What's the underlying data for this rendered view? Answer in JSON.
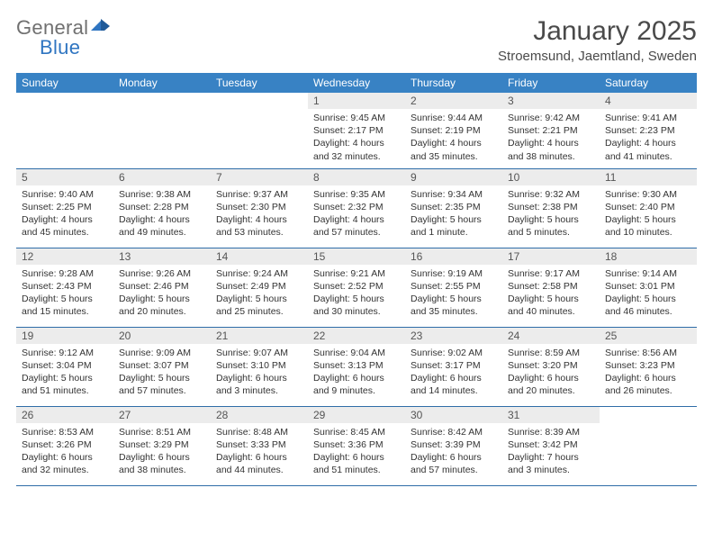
{
  "brand": {
    "word1": "General",
    "word2": "Blue"
  },
  "title": "January 2025",
  "location": "Stroemsund, Jaemtland, Sweden",
  "theme": {
    "accent": "#3882c4",
    "header_text": "#ffffff",
    "daynum_bg": "#ececec",
    "rule": "#2f6da8",
    "body_text": "#333333"
  },
  "weekdays": [
    "Sunday",
    "Monday",
    "Tuesday",
    "Wednesday",
    "Thursday",
    "Friday",
    "Saturday"
  ],
  "weeks": [
    [
      {
        "n": "",
        "lines": []
      },
      {
        "n": "",
        "lines": []
      },
      {
        "n": "",
        "lines": []
      },
      {
        "n": "1",
        "lines": [
          "Sunrise: 9:45 AM",
          "Sunset: 2:17 PM",
          "Daylight: 4 hours and 32 minutes."
        ]
      },
      {
        "n": "2",
        "lines": [
          "Sunrise: 9:44 AM",
          "Sunset: 2:19 PM",
          "Daylight: 4 hours and 35 minutes."
        ]
      },
      {
        "n": "3",
        "lines": [
          "Sunrise: 9:42 AM",
          "Sunset: 2:21 PM",
          "Daylight: 4 hours and 38 minutes."
        ]
      },
      {
        "n": "4",
        "lines": [
          "Sunrise: 9:41 AM",
          "Sunset: 2:23 PM",
          "Daylight: 4 hours and 41 minutes."
        ]
      }
    ],
    [
      {
        "n": "5",
        "lines": [
          "Sunrise: 9:40 AM",
          "Sunset: 2:25 PM",
          "Daylight: 4 hours and 45 minutes."
        ]
      },
      {
        "n": "6",
        "lines": [
          "Sunrise: 9:38 AM",
          "Sunset: 2:28 PM",
          "Daylight: 4 hours and 49 minutes."
        ]
      },
      {
        "n": "7",
        "lines": [
          "Sunrise: 9:37 AM",
          "Sunset: 2:30 PM",
          "Daylight: 4 hours and 53 minutes."
        ]
      },
      {
        "n": "8",
        "lines": [
          "Sunrise: 9:35 AM",
          "Sunset: 2:32 PM",
          "Daylight: 4 hours and 57 minutes."
        ]
      },
      {
        "n": "9",
        "lines": [
          "Sunrise: 9:34 AM",
          "Sunset: 2:35 PM",
          "Daylight: 5 hours and 1 minute."
        ]
      },
      {
        "n": "10",
        "lines": [
          "Sunrise: 9:32 AM",
          "Sunset: 2:38 PM",
          "Daylight: 5 hours and 5 minutes."
        ]
      },
      {
        "n": "11",
        "lines": [
          "Sunrise: 9:30 AM",
          "Sunset: 2:40 PM",
          "Daylight: 5 hours and 10 minutes."
        ]
      }
    ],
    [
      {
        "n": "12",
        "lines": [
          "Sunrise: 9:28 AM",
          "Sunset: 2:43 PM",
          "Daylight: 5 hours and 15 minutes."
        ]
      },
      {
        "n": "13",
        "lines": [
          "Sunrise: 9:26 AM",
          "Sunset: 2:46 PM",
          "Daylight: 5 hours and 20 minutes."
        ]
      },
      {
        "n": "14",
        "lines": [
          "Sunrise: 9:24 AM",
          "Sunset: 2:49 PM",
          "Daylight: 5 hours and 25 minutes."
        ]
      },
      {
        "n": "15",
        "lines": [
          "Sunrise: 9:21 AM",
          "Sunset: 2:52 PM",
          "Daylight: 5 hours and 30 minutes."
        ]
      },
      {
        "n": "16",
        "lines": [
          "Sunrise: 9:19 AM",
          "Sunset: 2:55 PM",
          "Daylight: 5 hours and 35 minutes."
        ]
      },
      {
        "n": "17",
        "lines": [
          "Sunrise: 9:17 AM",
          "Sunset: 2:58 PM",
          "Daylight: 5 hours and 40 minutes."
        ]
      },
      {
        "n": "18",
        "lines": [
          "Sunrise: 9:14 AM",
          "Sunset: 3:01 PM",
          "Daylight: 5 hours and 46 minutes."
        ]
      }
    ],
    [
      {
        "n": "19",
        "lines": [
          "Sunrise: 9:12 AM",
          "Sunset: 3:04 PM",
          "Daylight: 5 hours and 51 minutes."
        ]
      },
      {
        "n": "20",
        "lines": [
          "Sunrise: 9:09 AM",
          "Sunset: 3:07 PM",
          "Daylight: 5 hours and 57 minutes."
        ]
      },
      {
        "n": "21",
        "lines": [
          "Sunrise: 9:07 AM",
          "Sunset: 3:10 PM",
          "Daylight: 6 hours and 3 minutes."
        ]
      },
      {
        "n": "22",
        "lines": [
          "Sunrise: 9:04 AM",
          "Sunset: 3:13 PM",
          "Daylight: 6 hours and 9 minutes."
        ]
      },
      {
        "n": "23",
        "lines": [
          "Sunrise: 9:02 AM",
          "Sunset: 3:17 PM",
          "Daylight: 6 hours and 14 minutes."
        ]
      },
      {
        "n": "24",
        "lines": [
          "Sunrise: 8:59 AM",
          "Sunset: 3:20 PM",
          "Daylight: 6 hours and 20 minutes."
        ]
      },
      {
        "n": "25",
        "lines": [
          "Sunrise: 8:56 AM",
          "Sunset: 3:23 PM",
          "Daylight: 6 hours and 26 minutes."
        ]
      }
    ],
    [
      {
        "n": "26",
        "lines": [
          "Sunrise: 8:53 AM",
          "Sunset: 3:26 PM",
          "Daylight: 6 hours and 32 minutes."
        ]
      },
      {
        "n": "27",
        "lines": [
          "Sunrise: 8:51 AM",
          "Sunset: 3:29 PM",
          "Daylight: 6 hours and 38 minutes."
        ]
      },
      {
        "n": "28",
        "lines": [
          "Sunrise: 8:48 AM",
          "Sunset: 3:33 PM",
          "Daylight: 6 hours and 44 minutes."
        ]
      },
      {
        "n": "29",
        "lines": [
          "Sunrise: 8:45 AM",
          "Sunset: 3:36 PM",
          "Daylight: 6 hours and 51 minutes."
        ]
      },
      {
        "n": "30",
        "lines": [
          "Sunrise: 8:42 AM",
          "Sunset: 3:39 PM",
          "Daylight: 6 hours and 57 minutes."
        ]
      },
      {
        "n": "31",
        "lines": [
          "Sunrise: 8:39 AM",
          "Sunset: 3:42 PM",
          "Daylight: 7 hours and 3 minutes."
        ]
      },
      {
        "n": "",
        "lines": []
      }
    ]
  ]
}
